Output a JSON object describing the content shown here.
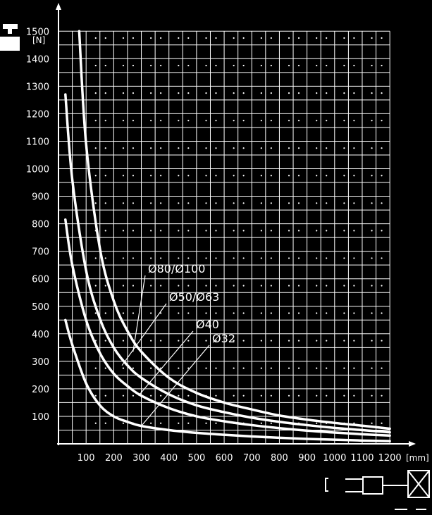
{
  "chart_data": {
    "type": "line",
    "xlabel": "[mm]",
    "ylabel": "[N]",
    "xlim": [
      0,
      1200
    ],
    "ylim": [
      0,
      1500
    ],
    "xticks": [
      100,
      200,
      300,
      400,
      500,
      600,
      700,
      800,
      900,
      1000,
      1100,
      1200
    ],
    "yticks": [
      100,
      200,
      300,
      400,
      500,
      600,
      700,
      800,
      900,
      1000,
      1100,
      1200,
      1300,
      1400,
      1500
    ],
    "grid": true,
    "series": [
      {
        "name": "Ø80/Ø100",
        "x": [
          75,
          100,
          150,
          200,
          250,
          300,
          400,
          500,
          600,
          700,
          800,
          900,
          1000,
          1100,
          1200
        ],
        "values": [
          1500,
          1090,
          710,
          520,
          410,
          335,
          240,
          185,
          150,
          125,
          103,
          88,
          76,
          66,
          55
        ]
      },
      {
        "name": "Ø50/Ø63",
        "x": [
          25,
          50,
          100,
          150,
          200,
          250,
          300,
          400,
          500,
          600,
          700,
          800,
          900,
          1000,
          1100,
          1200
        ],
        "values": [
          1270,
          960,
          630,
          455,
          350,
          285,
          240,
          180,
          140,
          115,
          95,
          80,
          68,
          58,
          50,
          42
        ]
      },
      {
        "name": "Ø40",
        "x": [
          25,
          50,
          100,
          150,
          200,
          250,
          300,
          400,
          500,
          600,
          700,
          800,
          900,
          1000,
          1100,
          1200
        ],
        "values": [
          815,
          650,
          450,
          330,
          255,
          210,
          175,
          130,
          100,
          82,
          68,
          57,
          48,
          41,
          35,
          30
        ]
      },
      {
        "name": "Ø32",
        "x": [
          25,
          50,
          100,
          150,
          200,
          250,
          300,
          400,
          500,
          600,
          700,
          800,
          900,
          1000,
          1100,
          1200
        ],
        "values": [
          450,
          360,
          220,
          140,
          100,
          80,
          65,
          50,
          40,
          33,
          27,
          22,
          18,
          15,
          12,
          10
        ]
      }
    ]
  }
}
